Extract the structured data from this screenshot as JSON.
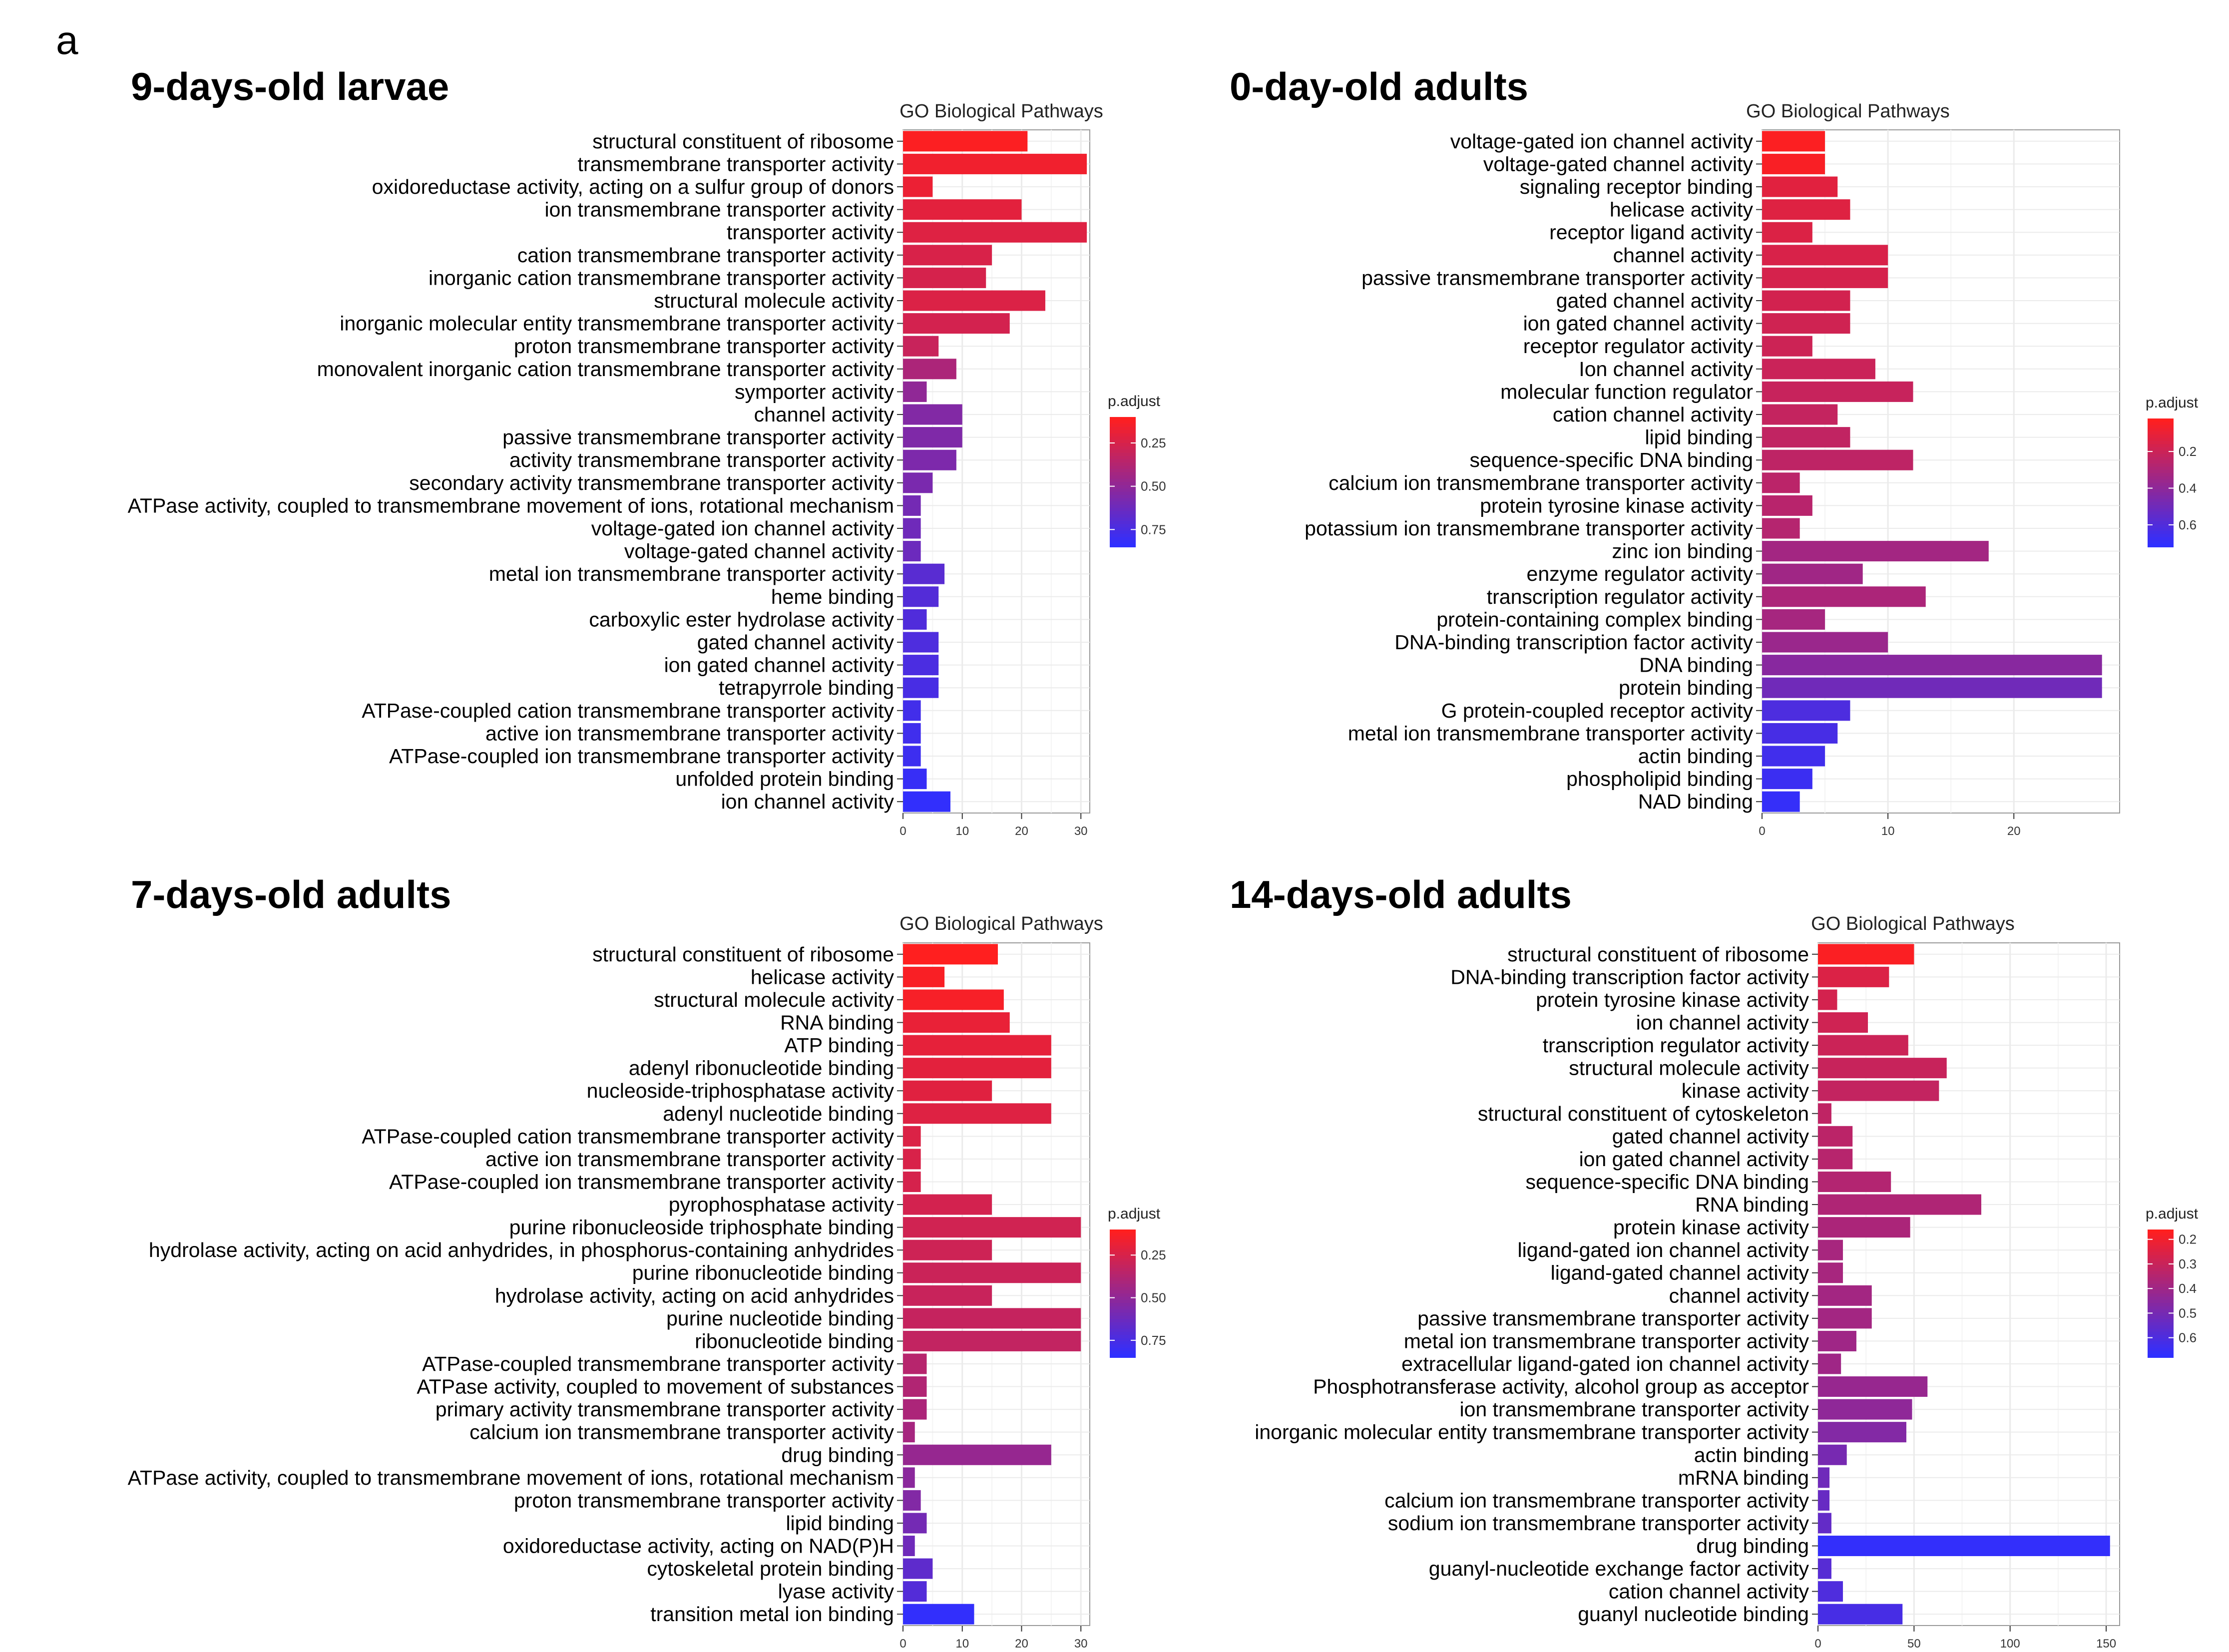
{
  "panel_label": "a",
  "colors": {
    "low": "#ff1f1f",
    "high": "#2f2fff",
    "grid": "#ebebeb",
    "axis": "#333333"
  },
  "chart_data": [
    {
      "type": "bar",
      "orientation": "horizontal",
      "heading": "9-days-old larvae",
      "title": "GO Biological Pathways",
      "legend_title": "p.adjust",
      "legend_ticks": [
        0.25,
        0.5,
        0.75
      ],
      "legend_range": [
        0.1,
        0.85
      ],
      "xticks": [
        0,
        10,
        20,
        30
      ],
      "xlim": [
        0,
        31.5
      ],
      "categories": [
        "structural constituent of ribosome",
        "transmembrane transporter activity",
        "oxidoreductase activity, acting on a sulfur group of donors",
        "ion transmembrane transporter activity",
        "transporter activity",
        "cation transmembrane transporter activity",
        "inorganic cation transmembrane transporter activity",
        "structural molecule activity",
        "inorganic molecular entity transmembrane transporter activity",
        "proton transmembrane transporter activity",
        "monovalent inorganic cation transmembrane transporter activity",
        "symporter activity",
        "channel activity",
        "passive transmembrane transporter activity",
        "activity transmembrane transporter activity",
        "secondary activity transmembrane transporter activity",
        "ATPase activity, coupled to transmembrane movement of ions, rotational mechanism",
        "voltage-gated ion channel activity",
        "voltage-gated channel activity",
        "metal ion transmembrane transporter activity",
        "heme binding",
        "carboxylic ester hydrolase activity",
        "gated channel activity",
        "ion gated channel activity",
        "tetrapyrrole binding",
        "ATPase-coupled cation transmembrane transporter activity",
        "active ion transmembrane transporter activity",
        "ATPase-coupled ion transmembrane transporter activity",
        "unfolded protein binding",
        "ion channel activity"
      ],
      "values": [
        21,
        31,
        5,
        20,
        31,
        15,
        14,
        24,
        18,
        6,
        9,
        4,
        10,
        10,
        9,
        5,
        3,
        3,
        3,
        7,
        6,
        4,
        6,
        6,
        6,
        3,
        3,
        3,
        4,
        8
      ],
      "p_adjust": [
        0.11,
        0.15,
        0.17,
        0.2,
        0.22,
        0.24,
        0.25,
        0.23,
        0.26,
        0.3,
        0.4,
        0.5,
        0.55,
        0.56,
        0.57,
        0.58,
        0.6,
        0.62,
        0.63,
        0.7,
        0.72,
        0.73,
        0.74,
        0.75,
        0.76,
        0.78,
        0.79,
        0.8,
        0.82,
        0.84
      ]
    },
    {
      "type": "bar",
      "orientation": "horizontal",
      "heading": "0-day-old adults",
      "title": "GO Biological Pathways",
      "legend_title": "p.adjust",
      "legend_ticks": [
        0.2,
        0.4,
        0.6
      ],
      "legend_range": [
        0.02,
        0.72
      ],
      "xticks": [
        0,
        10,
        20
      ],
      "xlim": [
        0,
        28.4
      ],
      "categories": [
        "voltage-gated ion channel activity",
        "voltage-gated channel activity",
        "signaling receptor binding",
        "helicase activity",
        "receptor ligand activity",
        "channel activity",
        "passive transmembrane transporter activity",
        "gated channel activity",
        "ion gated channel activity",
        "receptor regulator activity",
        "Ion channel activity",
        "molecular function regulator",
        "cation channel activity",
        "lipid binding",
        "sequence-specific DNA binding",
        "calcium ion transmembrane transporter activity",
        "protein tyrosine kinase activity",
        "potassium ion transmembrane transporter activity",
        "zinc ion binding",
        "enzyme regulator activity",
        "transcription regulator activity",
        "protein-containing complex binding",
        "DNA-binding transcription factor activity",
        "DNA binding",
        "protein binding",
        "G protein-coupled receptor activity",
        "metal ion transmembrane transporter activity",
        "actin binding",
        "phospholipid binding",
        "NAD binding"
      ],
      "values": [
        5,
        5,
        6,
        7,
        4,
        10,
        10,
        7,
        7,
        4,
        9,
        12,
        6,
        7,
        12,
        3,
        4,
        3,
        18,
        8,
        13,
        5,
        10,
        27,
        27,
        7,
        6,
        5,
        4,
        3
      ],
      "p_adjust": [
        0.03,
        0.04,
        0.12,
        0.13,
        0.14,
        0.15,
        0.16,
        0.17,
        0.18,
        0.19,
        0.2,
        0.21,
        0.22,
        0.23,
        0.24,
        0.25,
        0.26,
        0.27,
        0.33,
        0.34,
        0.3,
        0.32,
        0.36,
        0.42,
        0.5,
        0.62,
        0.64,
        0.66,
        0.68,
        0.7
      ]
    },
    {
      "type": "bar",
      "orientation": "horizontal",
      "heading": "7-days-old adults",
      "title": "GO Biological Pathways",
      "legend_title": "p.adjust",
      "legend_ticks": [
        0.25,
        0.5,
        0.75
      ],
      "legend_range": [
        0.1,
        0.85
      ],
      "xticks": [
        0,
        10,
        20,
        30
      ],
      "xlim": [
        0,
        31.5
      ],
      "categories": [
        "structural constituent of ribosome",
        "helicase activity",
        "structural molecule activity",
        "RNA binding",
        "ATP binding",
        "adenyl ribonucleotide binding",
        "nucleoside-triphosphatase activity",
        "adenyl nucleotide binding",
        "ATPase-coupled cation transmembrane transporter activity",
        "active ion transmembrane transporter activity",
        "ATPase-coupled ion transmembrane transporter activity",
        "pyrophosphatase activity",
        "purine ribonucleoside triphosphate binding",
        "hydrolase activity, acting on acid anhydrides, in phosphorus-containing anhydrides",
        "purine ribonucleotide binding",
        "hydrolase activity, acting on acid anhydrides",
        "purine nucleotide binding",
        "ribonucleotide binding",
        "ATPase-coupled transmembrane transporter activity",
        "ATPase activity, coupled to movement of substances",
        "primary activity transmembrane transporter activity",
        "calcium ion transmembrane transporter activity",
        "drug binding",
        "ATPase activity, coupled to transmembrane movement of ions, rotational mechanism",
        "proton transmembrane transporter activity",
        "lipid binding",
        "oxidoreductase activity, acting on NAD(P)H",
        "cytoskeletal protein binding",
        "lyase activity",
        "transition metal ion binding"
      ],
      "values": [
        16,
        7,
        17,
        18,
        25,
        25,
        15,
        25,
        3,
        3,
        3,
        15,
        30,
        15,
        30,
        15,
        30,
        30,
        4,
        4,
        4,
        2,
        25,
        2,
        3,
        4,
        2,
        5,
        4,
        12
      ],
      "p_adjust": [
        0.1,
        0.12,
        0.13,
        0.18,
        0.19,
        0.2,
        0.21,
        0.22,
        0.23,
        0.24,
        0.25,
        0.26,
        0.27,
        0.28,
        0.29,
        0.3,
        0.31,
        0.32,
        0.36,
        0.38,
        0.4,
        0.42,
        0.48,
        0.52,
        0.55,
        0.6,
        0.62,
        0.68,
        0.72,
        0.84
      ]
    },
    {
      "type": "bar",
      "orientation": "horizontal",
      "heading": "14-days-old adults",
      "title": "GO Biological Pathways",
      "legend_title": "p.adjust",
      "legend_ticks": [
        0.2,
        0.3,
        0.4,
        0.5,
        0.6
      ],
      "legend_range": [
        0.16,
        0.68
      ],
      "xticks": [
        0,
        50,
        100,
        150
      ],
      "xlim": [
        0,
        157
      ],
      "categories": [
        "structural constituent of ribosome",
        "DNA-binding transcription factor activity",
        "protein tyrosine kinase activity",
        "ion channel activity",
        "transcription regulator activity",
        "structural molecule activity",
        "kinase activity",
        "structural constituent of cytoskeleton",
        "gated channel activity",
        "ion gated channel activity",
        "sequence-specific DNA binding",
        "RNA binding",
        "protein kinase activity",
        "ligand-gated ion channel activity",
        "ligand-gated channel activity",
        "channel activity",
        "passive transmembrane transporter activity",
        "metal ion transmembrane transporter activity",
        "extracellular ligand-gated ion channel activity",
        "Phosphotransferase activity, alcohol group as acceptor",
        "ion transmembrane transporter activity",
        "inorganic molecular entity transmembrane transporter activity",
        "actin binding",
        "mRNA binding",
        "calcium ion transmembrane transporter activity",
        "sodium ion transmembrane transporter activity",
        "drug binding",
        "guanyl-nucleotide exchange factor activity",
        "cation channel activity",
        "guanyl nucleotide binding"
      ],
      "values": [
        50,
        37,
        10,
        26,
        47,
        67,
        63,
        7,
        18,
        18,
        38,
        85,
        48,
        13,
        13,
        28,
        28,
        20,
        12,
        57,
        49,
        46,
        15,
        6,
        6,
        7,
        152,
        7,
        13,
        44
      ],
      "p_adjust": [
        0.17,
        0.25,
        0.27,
        0.28,
        0.29,
        0.3,
        0.31,
        0.32,
        0.33,
        0.34,
        0.35,
        0.36,
        0.37,
        0.38,
        0.38,
        0.39,
        0.39,
        0.4,
        0.4,
        0.42,
        0.44,
        0.47,
        0.5,
        0.52,
        0.54,
        0.55,
        0.67,
        0.58,
        0.6,
        0.62
      ]
    }
  ]
}
